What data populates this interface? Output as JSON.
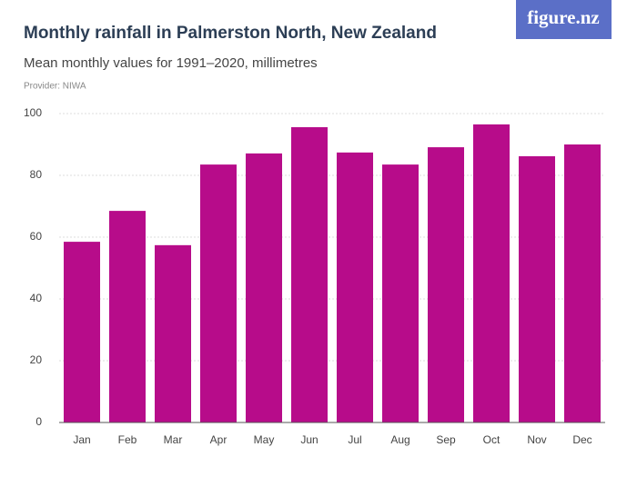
{
  "brand": "figure.nz",
  "chart_data": {
    "type": "bar",
    "title": "Monthly rainfall in Palmerston North, New Zealand",
    "subtitle": "Mean monthly values for 1991–2020, millimetres",
    "source": "Provider: NIWA",
    "categories": [
      "Jan",
      "Feb",
      "Mar",
      "Apr",
      "May",
      "Jun",
      "Jul",
      "Aug",
      "Sep",
      "Oct",
      "Nov",
      "Dec"
    ],
    "values": [
      58.5,
      68.5,
      57.4,
      83.5,
      87.1,
      95.6,
      87.4,
      83.5,
      89.1,
      96.5,
      86.2,
      90
    ],
    "color": "#b70c8a",
    "ylim": [
      0,
      100
    ],
    "yticks": [
      0,
      20,
      40,
      60,
      80,
      100
    ],
    "grid": true
  }
}
